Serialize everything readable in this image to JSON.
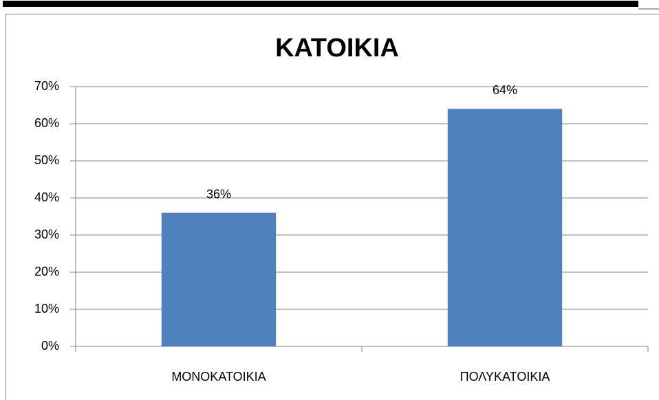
{
  "chart_data": {
    "type": "bar",
    "title": "ΚΑΤΟΙΚΙΑ",
    "categories": [
      "ΜΟΝΟΚΑΤΟΙΚΙΑ",
      "ΠΟΛΥΚΑΤΟΙΚΙΑ"
    ],
    "values": [
      36,
      64
    ],
    "value_labels": [
      "36%",
      "64%"
    ],
    "color": "#4f81bd",
    "ylim": [
      0,
      70
    ],
    "yticks": [
      {
        "value": 0,
        "label": "0%"
      },
      {
        "value": 10,
        "label": "10%"
      },
      {
        "value": 20,
        "label": "20%"
      },
      {
        "value": 30,
        "label": "30%"
      },
      {
        "value": 40,
        "label": "40%"
      },
      {
        "value": 50,
        "label": "50%"
      },
      {
        "value": 60,
        "label": "60%"
      },
      {
        "value": 70,
        "label": "70%"
      }
    ],
    "grid": true
  }
}
